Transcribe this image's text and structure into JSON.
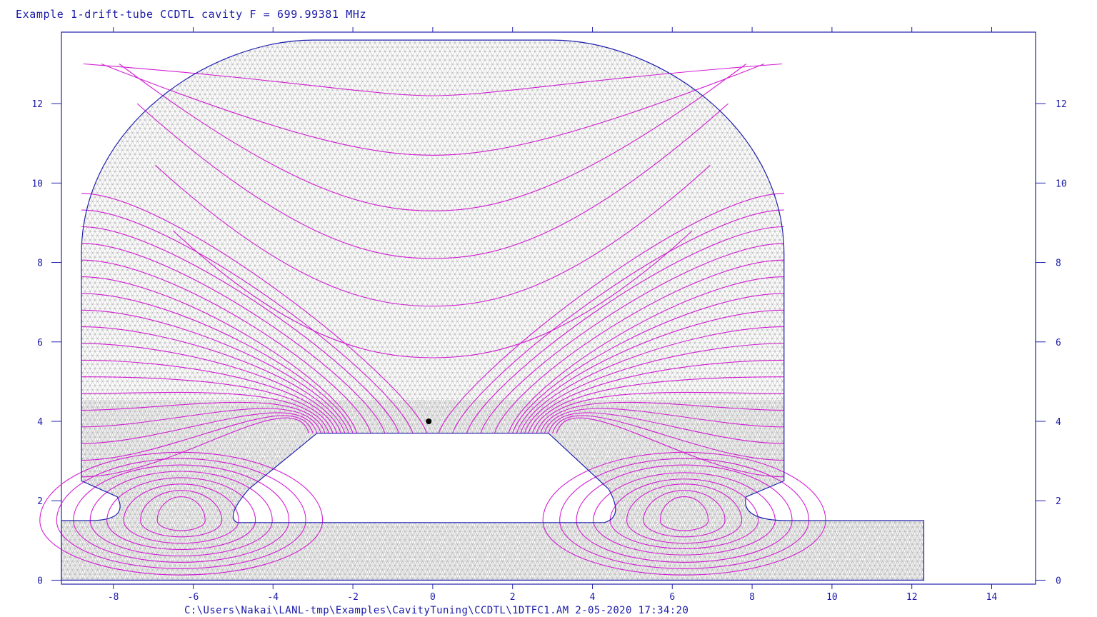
{
  "title": "Example 1-drift-tube CCDTL cavity  F = 699.99381 MHz",
  "footer": "C:\\Users\\Nakai\\LANL-tmp\\Examples\\CavityTuning\\CCDTL\\1DTFC1.AM   2-05-2020  17:34:20",
  "x_ticks": [
    "-8",
    "-6",
    "-4",
    "-2",
    "0",
    "2",
    "4",
    "6",
    "8",
    "10",
    "12",
    "14"
  ],
  "y_ticks": [
    "0",
    "2",
    "4",
    "6",
    "8",
    "10",
    "12"
  ],
  "colors": {
    "text": "#1a1aa8",
    "frame": "#2020b0",
    "mesh": "#b4b4b4",
    "field_lines": "#d21ed2",
    "marker": "#000000"
  },
  "diagram": {
    "x_range": [
      -9.3,
      15.1
    ],
    "y_range": [
      -0.1,
      13.8
    ],
    "cavity_radius": 13.6,
    "cavity_half_length": 8.8,
    "beam_pipe_radius": 1.5,
    "beam_pipe_x_range": [
      -9.3,
      12.3
    ],
    "drift_tube_top": 3.7,
    "drift_tube_bottom": 1.6,
    "drift_tube_flat_half_width": 2.9,
    "marker": [
      -0.1,
      4.0
    ],
    "field_line_levels": [
      5.6,
      6.9,
      8.1,
      9.3,
      10.7,
      12.2
    ]
  }
}
